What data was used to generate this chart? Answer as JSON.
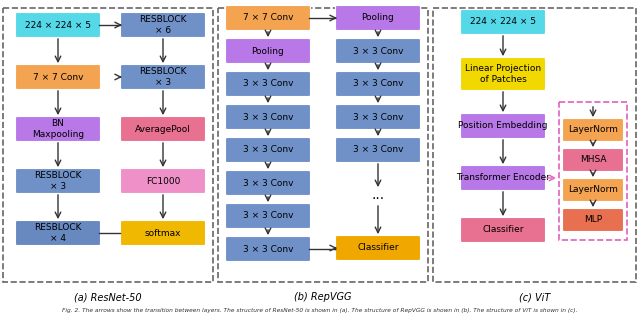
{
  "fig_width": 6.4,
  "fig_height": 3.2,
  "background": "#ffffff",
  "subcaptions": [
    "(a) ResNet-50",
    "(b) RepVGG",
    "(c) ViT"
  ],
  "caption": "Fig. 2. The arrows show the transition between layers. The structure of ResNet-50 is shown in (a). The structure of RepVGG is shown in (b). The structure of ViT is shown in (c).",
  "resnet": {
    "left_col": [
      {
        "label": "224 × 224 × 5",
        "color": "#55d8e8"
      },
      {
        "label": "7 × 7 Conv",
        "color": "#f4a450"
      },
      {
        "label": "BN\nMaxpooling",
        "color": "#b878e8"
      },
      {
        "label": "RESBLOCK\n× 3",
        "color": "#7090c8"
      },
      {
        "label": "RESBLOCK\n× 4",
        "color": "#6888c0"
      }
    ],
    "right_col": [
      {
        "label": "RESBLOCK\n× 6",
        "color": "#7090c8"
      },
      {
        "label": "RESBLOCK\n× 3",
        "color": "#7090c8"
      },
      {
        "label": "AveragePool",
        "color": "#e87090"
      },
      {
        "label": "FC1000",
        "color": "#f090c8"
      },
      {
        "label": "softmax",
        "color": "#f0b800"
      }
    ]
  },
  "repvgg": {
    "left_col": [
      {
        "label": "7 × 7 Conv",
        "color": "#f4a450"
      },
      {
        "label": "Pooling",
        "color": "#b878e8"
      },
      {
        "label": "3 × 3 Conv",
        "color": "#7090c8"
      },
      {
        "label": "3 × 3 Conv",
        "color": "#7090c8"
      },
      {
        "label": "3 × 3 Conv",
        "color": "#7090c8"
      },
      {
        "label": "3 × 3 Conv",
        "color": "#7090c8"
      },
      {
        "label": "3 × 3 Conv",
        "color": "#7090c8"
      },
      {
        "label": "3 × 3 Conv",
        "color": "#7090c8"
      }
    ],
    "right_col": [
      {
        "label": "Pooling",
        "color": "#b878e8"
      },
      {
        "label": "3 × 3 Conv",
        "color": "#7090c8"
      },
      {
        "label": "3 × 3 Conv",
        "color": "#7090c8"
      },
      {
        "label": "3 × 3 Conv",
        "color": "#7090c8"
      },
      {
        "label": "3 × 3 Conv",
        "color": "#7090c8"
      },
      {
        "label": "...",
        "color": null
      },
      {
        "label": "Classifier",
        "color": "#f0a800"
      }
    ]
  },
  "vit": {
    "main_col": [
      {
        "label": "224 × 224 × 5",
        "color": "#55d8e8"
      },
      {
        "label": "Linear Projection\nof Patches",
        "color": "#f0d800"
      },
      {
        "label": "Position Embedding",
        "color": "#b878e8"
      },
      {
        "label": "Transformer Encoder",
        "color": "#b878e8"
      },
      {
        "label": "Classifier",
        "color": "#e87090"
      }
    ],
    "sub_col": [
      {
        "label": "LayerNorm",
        "color": "#f4a450"
      },
      {
        "label": "MHSA",
        "color": "#e87090"
      },
      {
        "label": "LayerNorm",
        "color": "#f4a450"
      },
      {
        "label": "MLP",
        "color": "#e87050"
      }
    ]
  }
}
